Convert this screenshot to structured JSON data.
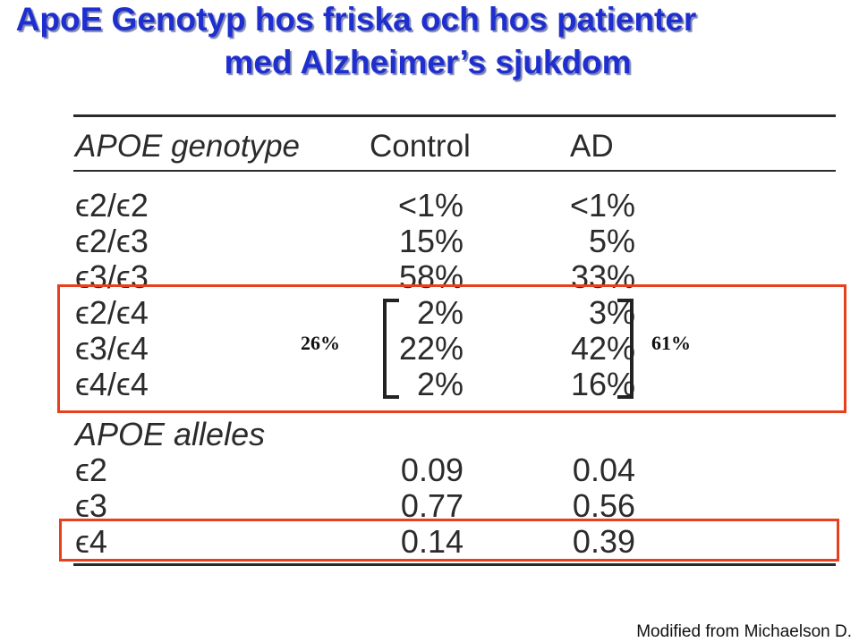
{
  "title": {
    "line1": "ApoE Genotyp hos friska och hos patienter",
    "line2": "med Alzheimer’s sjukdom"
  },
  "table": {
    "genotype_header": "APOE genotype",
    "control_header": "Control",
    "ad_header": "AD",
    "genotypes": [
      {
        "label": "ϵ2/ϵ2",
        "control": "<1%",
        "ad": "<1%"
      },
      {
        "label": "ϵ2/ϵ3",
        "control": "15%",
        "ad": "5%"
      },
      {
        "label": "ϵ3/ϵ3",
        "control": "58%",
        "ad": "33%"
      },
      {
        "label": "ϵ2/ϵ4",
        "control": "2%",
        "ad": "3%"
      },
      {
        "label": "ϵ3/ϵ4",
        "control": "22%",
        "ad": "42%"
      },
      {
        "label": "ϵ4/ϵ4",
        "control": "2%",
        "ad": "16%"
      }
    ],
    "alleles_header": "APOE alleles",
    "alleles": [
      {
        "label": "ϵ2",
        "control": "0.09",
        "ad": "0.04"
      },
      {
        "label": "ϵ3",
        "control": "0.77",
        "ad": "0.56"
      },
      {
        "label": "ϵ4",
        "control": "0.14",
        "ad": "0.39"
      }
    ]
  },
  "annotations": {
    "control_sum": "26%",
    "ad_sum": "61%",
    "highlight_color": "#e8401e"
  },
  "footer": "Modified from Michaelson D."
}
